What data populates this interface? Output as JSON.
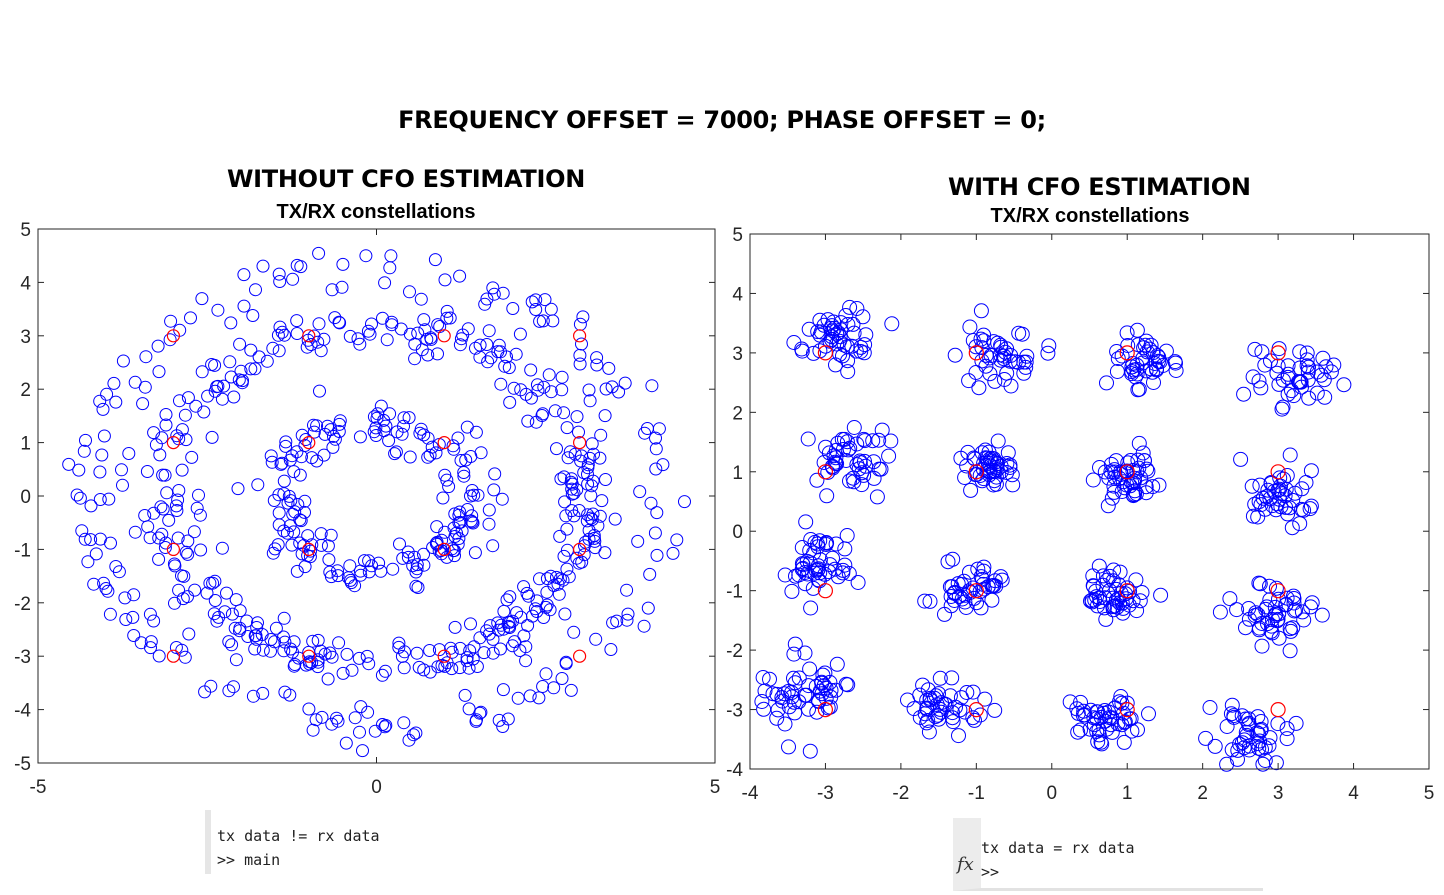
{
  "figure_title": "FREQUENCY OFFSET = 7000; PHASE OFFSET = 0;",
  "left_annotation": "WITHOUT CFO ESTIMATION",
  "right_annotation": "WITH CFO ESTIMATION",
  "console_left": {
    "line1": "tx data != rx data",
    "line2": ">> main"
  },
  "console_right": {
    "line1": "tx data = rx data",
    "prompt": ">>",
    "fx_icon": "fx-icon"
  },
  "colors": {
    "rx": "#0000ff",
    "tx": "#ff0000",
    "axis": "#262626"
  },
  "chart_data": [
    {
      "type": "scatter",
      "title": "TX/RX constellations",
      "xlabel": "",
      "ylabel": "",
      "xlim": [
        -5,
        5
      ],
      "ylim": [
        -5,
        5
      ],
      "xticks": [
        -5,
        0,
        5
      ],
      "yticks": [
        -5,
        -4,
        -3,
        -2,
        -1,
        0,
        1,
        2,
        3,
        4,
        5
      ],
      "grid": false,
      "description_points": "16-QAM received symbols rotated by a frequency offset, forming three concentric rings",
      "series": [
        {
          "marker": "o",
          "color": "#0000ff",
          "rings": [
            {
              "radius": 1.41,
              "count": 190
            },
            {
              "radius": 3.16,
              "count": 380
            },
            {
              "radius": 4.24,
              "count": 190
            }
          ],
          "radial_noise": 0.22
        },
        {
          "marker": "o",
          "color": "#ff0000",
          "x": [
            -3,
            -1,
            1,
            3,
            -3,
            -1,
            1,
            3,
            -3,
            -1,
            1,
            3,
            -3,
            -1,
            1,
            3
          ],
          "y": [
            3,
            3,
            3,
            3,
            1,
            1,
            1,
            1,
            -1,
            -1,
            -1,
            -1,
            -3,
            -3,
            -3,
            -3
          ]
        }
      ]
    },
    {
      "type": "scatter",
      "title": "TX/RX constellations",
      "xlabel": "",
      "ylabel": "",
      "xlim": [
        -4,
        5
      ],
      "ylim": [
        -4,
        5
      ],
      "xticks": [
        -4,
        -3,
        -2,
        -1,
        0,
        1,
        2,
        3,
        4,
        5
      ],
      "yticks": [
        -4,
        -3,
        -2,
        -1,
        0,
        1,
        2,
        3,
        4,
        5
      ],
      "grid": false,
      "series": [
        {
          "marker": "o",
          "color": "#0000ff",
          "clusters": [
            {
              "x": -2.8,
              "y": 3.25,
              "count": 50,
              "spread": 0.25
            },
            {
              "x": -0.7,
              "y": 3.0,
              "count": 45,
              "spread": 0.25
            },
            {
              "x": 1.2,
              "y": 2.85,
              "count": 45,
              "spread": 0.22
            },
            {
              "x": 3.2,
              "y": 2.6,
              "count": 45,
              "spread": 0.27
            },
            {
              "x": -2.7,
              "y": 1.25,
              "count": 50,
              "spread": 0.25
            },
            {
              "x": -0.8,
              "y": 1.05,
              "count": 50,
              "spread": 0.18
            },
            {
              "x": 1.0,
              "y": 0.9,
              "count": 50,
              "spread": 0.2
            },
            {
              "x": 3.0,
              "y": 0.6,
              "count": 45,
              "spread": 0.25
            },
            {
              "x": -3.1,
              "y": -0.6,
              "count": 50,
              "spread": 0.25
            },
            {
              "x": -1.1,
              "y": -0.95,
              "count": 45,
              "spread": 0.2
            },
            {
              "x": 0.9,
              "y": -1.05,
              "count": 50,
              "spread": 0.2
            },
            {
              "x": 2.9,
              "y": -1.4,
              "count": 50,
              "spread": 0.27
            },
            {
              "x": -3.3,
              "y": -2.75,
              "count": 55,
              "spread": 0.3
            },
            {
              "x": -1.4,
              "y": -2.95,
              "count": 45,
              "spread": 0.22
            },
            {
              "x": 0.7,
              "y": -3.1,
              "count": 50,
              "spread": 0.22
            },
            {
              "x": 2.6,
              "y": -3.4,
              "count": 45,
              "spread": 0.27
            }
          ]
        },
        {
          "marker": "o",
          "color": "#ff0000",
          "x": [
            -3,
            -1,
            1,
            3,
            -3,
            -1,
            1,
            3,
            -3,
            -1,
            1,
            3,
            -3,
            -1,
            1,
            3
          ],
          "y": [
            3,
            3,
            3,
            3,
            1,
            1,
            1,
            1,
            -1,
            -1,
            -1,
            -1,
            -3,
            -3,
            -3,
            -3
          ]
        }
      ]
    }
  ]
}
